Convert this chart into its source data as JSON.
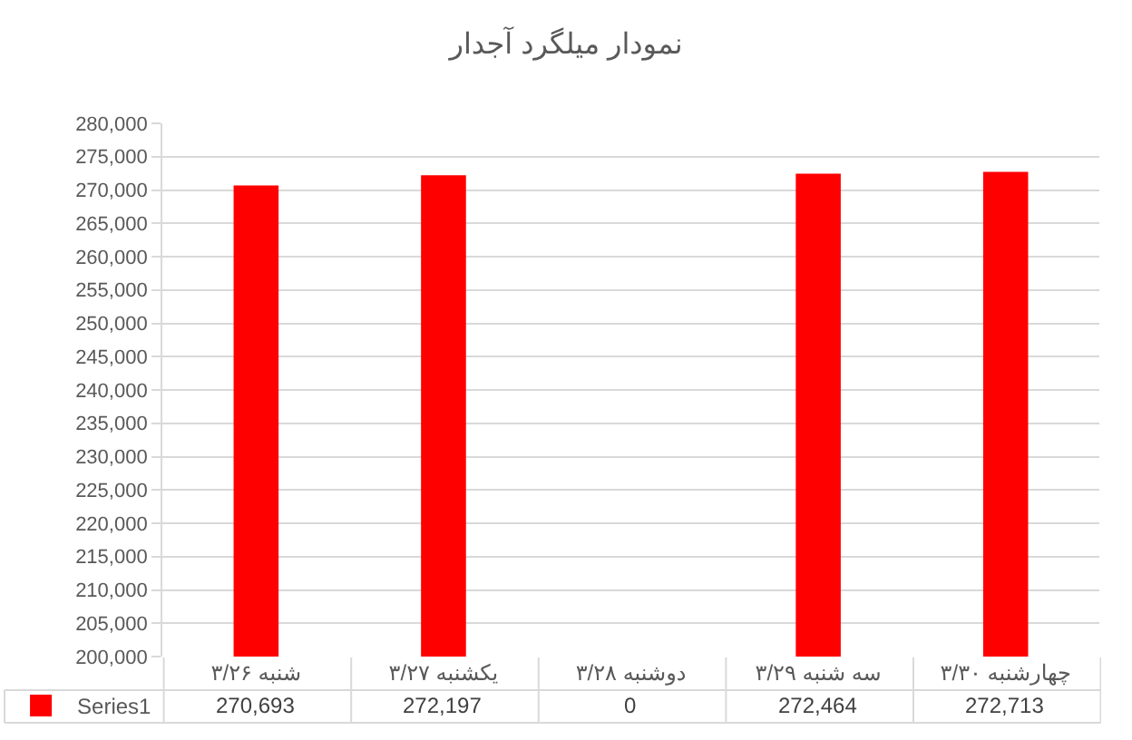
{
  "chart_data": {
    "type": "bar",
    "title": "نمودار میلگرد آجدار",
    "categories": [
      "شنبه ۳/۲۶",
      "یکشنبه ۳/۲۷",
      "دوشنبه ۳/۲۸",
      "سه شنبه ۳/۲۹",
      "چهارشنبه ۳/۳۰"
    ],
    "series": [
      {
        "name": "Series1",
        "color": "#ff0000",
        "values": [
          270693,
          272197,
          null,
          272464,
          272713
        ],
        "value_labels": [
          "270,693",
          "272,197",
          "0",
          "272,464",
          "272,713"
        ]
      }
    ],
    "ylim": [
      200000,
      280000
    ],
    "yticks": [
      {
        "value": 200000,
        "label": "200,000"
      },
      {
        "value": 205000,
        "label": "205,000"
      },
      {
        "value": 210000,
        "label": "210,000"
      },
      {
        "value": 215000,
        "label": "215,000"
      },
      {
        "value": 220000,
        "label": "220,000"
      },
      {
        "value": 225000,
        "label": "225,000"
      },
      {
        "value": 230000,
        "label": "230,000"
      },
      {
        "value": 235000,
        "label": "235,000"
      },
      {
        "value": 240000,
        "label": "240,000"
      },
      {
        "value": 245000,
        "label": "245,000"
      },
      {
        "value": 250000,
        "label": "250,000"
      },
      {
        "value": 255000,
        "label": "255,000"
      },
      {
        "value": 260000,
        "label": "260,000"
      },
      {
        "value": 265000,
        "label": "265,000"
      },
      {
        "value": 270000,
        "label": "270,000"
      },
      {
        "value": 275000,
        "label": "275,000"
      },
      {
        "value": 280000,
        "label": "280,000"
      }
    ],
    "grid": "y",
    "legend": "bottom left"
  }
}
